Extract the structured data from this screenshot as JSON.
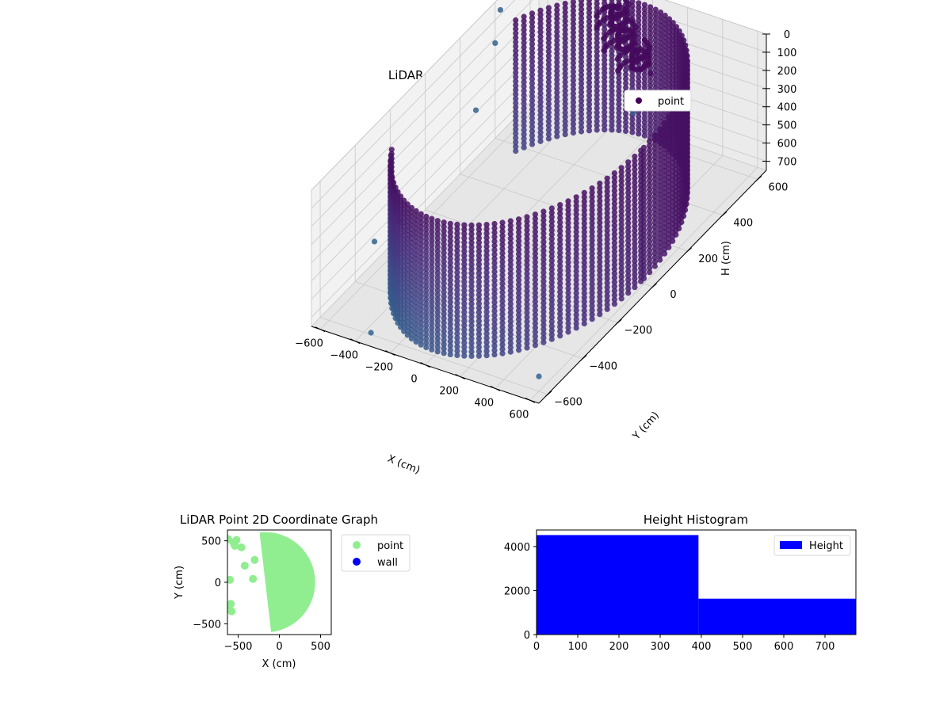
{
  "chart_data": [
    {
      "type": "scatter",
      "title": "LiDAR Point 3D Coordinate Graph",
      "xlabel": "X (cm)",
      "ylabel": "Y (cm)",
      "zlabel": "H (cm)",
      "xlim": [
        -650,
        650
      ],
      "ylim": [
        -650,
        650
      ],
      "zlim": [
        0,
        750
      ],
      "z_inverted": true,
      "x_ticks": [
        -600,
        -400,
        -200,
        0,
        200,
        400,
        600
      ],
      "y_ticks": [
        -600,
        -400,
        -200,
        0,
        200,
        400,
        600
      ],
      "z_ticks": [
        0,
        100,
        200,
        300,
        400,
        500,
        600,
        700
      ],
      "legend": {
        "position": "top-right",
        "entries": [
          "point"
        ]
      },
      "series": [
        {
          "name": "point",
          "color": "#440154",
          "colormap": "viridis",
          "cylinder": {
            "radius_cm": 600,
            "h_min": 0,
            "h_max": 740,
            "gap_from_deg": 145,
            "gap_to_deg": 215
          },
          "clusters": [
            {
              "x": -40,
              "y": 520,
              "h": 120
            },
            {
              "x": 60,
              "y": 500,
              "h": 180
            },
            {
              "x": -120,
              "y": 560,
              "h": 60
            }
          ],
          "outliers": [
            {
              "x": -640,
              "y": 420,
              "h": 60
            },
            {
              "x": -630,
              "y": 380,
              "h": 200
            },
            {
              "x": -660,
              "y": 300,
              "h": 500
            },
            {
              "x": -560,
              "y": -380,
              "h": 520
            },
            {
              "x": -700,
              "y": -100,
              "h": 730
            },
            {
              "x": -360,
              "y": -600,
              "h": 740
            },
            {
              "x": 560,
              "y": -560,
              "h": 720
            },
            {
              "x": 120,
              "y": 420,
              "h": 380
            }
          ]
        }
      ]
    },
    {
      "type": "scatter",
      "title": "LiDAR Point 2D Coordinate Graph",
      "xlabel": "X (cm)",
      "ylabel": "Y (cm)",
      "xlim": [
        -630,
        630
      ],
      "ylim": [
        -630,
        630
      ],
      "x_ticks": [
        -500,
        0,
        500
      ],
      "y_ticks": [
        -500,
        0,
        500
      ],
      "legend": {
        "position": "outside-right",
        "entries": [
          "point",
          "wall"
        ]
      },
      "series": [
        {
          "name": "point",
          "color": "#90ee90",
          "region": {
            "radius_cm": 600,
            "chord": [
              [
                -240,
                600
              ],
              [
                -100,
                -600
              ]
            ]
          },
          "x": [
            -620,
            -560,
            -520,
            -460,
            -540,
            -600,
            -590,
            -420,
            -300,
            -320,
            -610,
            -580
          ],
          "y": [
            520,
            480,
            510,
            420,
            440,
            30,
            -260,
            200,
            270,
            40,
            -280,
            -350
          ]
        },
        {
          "name": "wall",
          "color": "#0000ff",
          "x": [],
          "y": []
        }
      ]
    },
    {
      "type": "bar",
      "title": "Height Histogram",
      "xlim": [
        0,
        775
      ],
      "ylim": [
        0,
        4750
      ],
      "x_ticks": [
        0,
        100,
        200,
        300,
        400,
        500,
        600,
        700
      ],
      "y_ticks": [
        0,
        2000,
        4000
      ],
      "legend": {
        "position": "top-right",
        "entries": [
          "Height"
        ]
      },
      "series": [
        {
          "name": "Height",
          "color": "#0000ff",
          "bins": [
            [
              0,
              393
            ],
            [
              393,
              775
            ]
          ],
          "values": [
            4520,
            1630
          ]
        }
      ]
    }
  ]
}
